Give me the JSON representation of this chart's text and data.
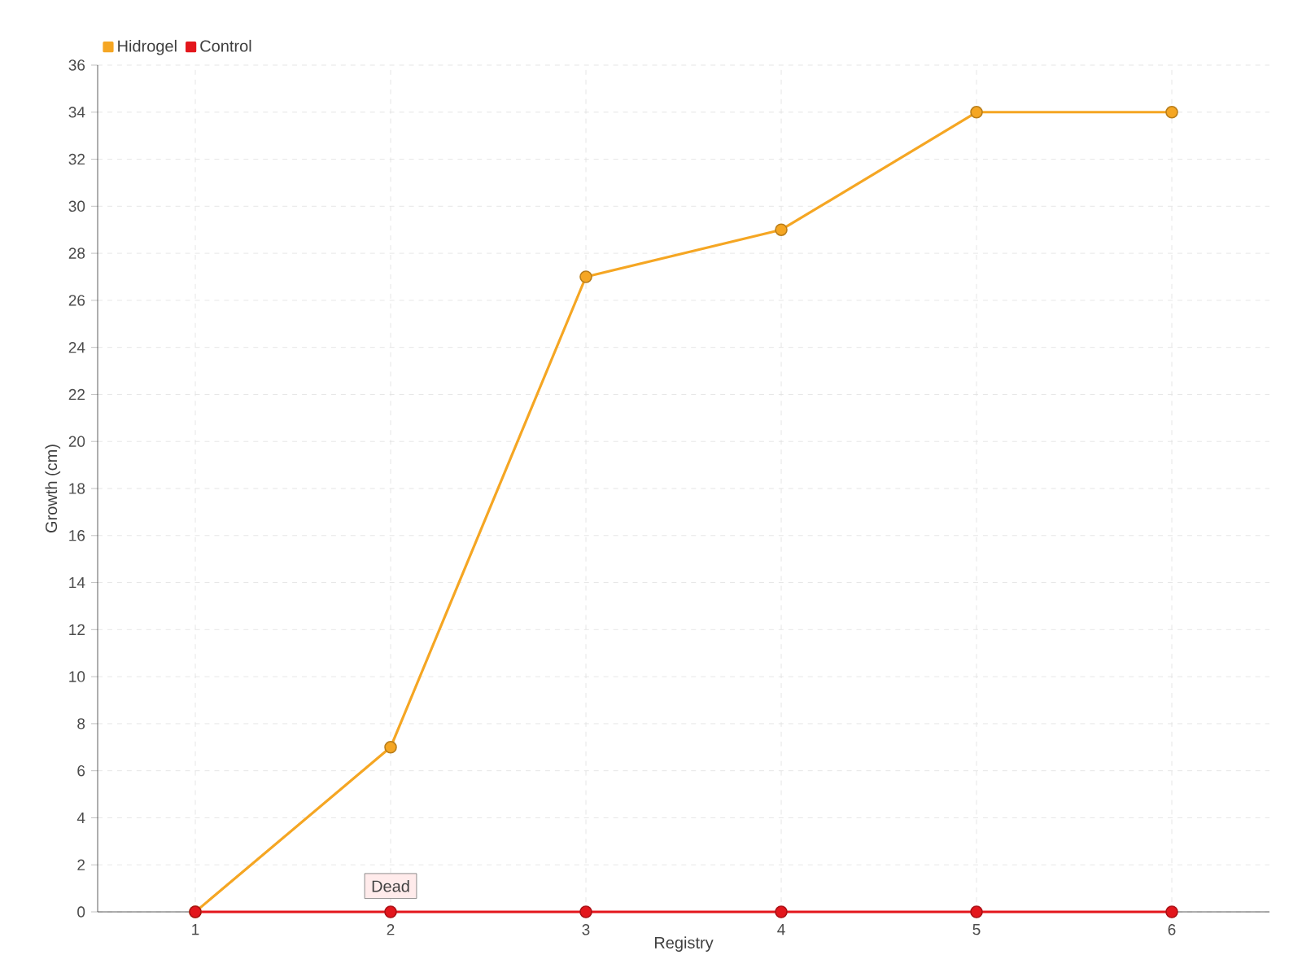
{
  "chart_data": {
    "type": "line",
    "xlabel": "Registry",
    "ylabel": "Growth (cm)",
    "categories": [
      "1",
      "2",
      "3",
      "4",
      "5",
      "6"
    ],
    "series": [
      {
        "name": "Hidrogel",
        "color": "#f5a623",
        "values": [
          0,
          7,
          27,
          29,
          34,
          34
        ]
      },
      {
        "name": "Control",
        "color": "#e3161c",
        "values": [
          0,
          0,
          0,
          0,
          0,
          0
        ]
      }
    ],
    "ylim": [
      0,
      36
    ],
    "yticks": [
      0,
      2,
      4,
      6,
      8,
      10,
      12,
      14,
      16,
      18,
      20,
      22,
      24,
      26,
      28,
      30,
      32,
      34,
      36
    ],
    "annotations": [
      {
        "text": "Dead",
        "x": "2",
        "y": 0
      }
    ],
    "grid": true,
    "legend": "top left",
    "marker": "circle",
    "line_style": "solid"
  }
}
